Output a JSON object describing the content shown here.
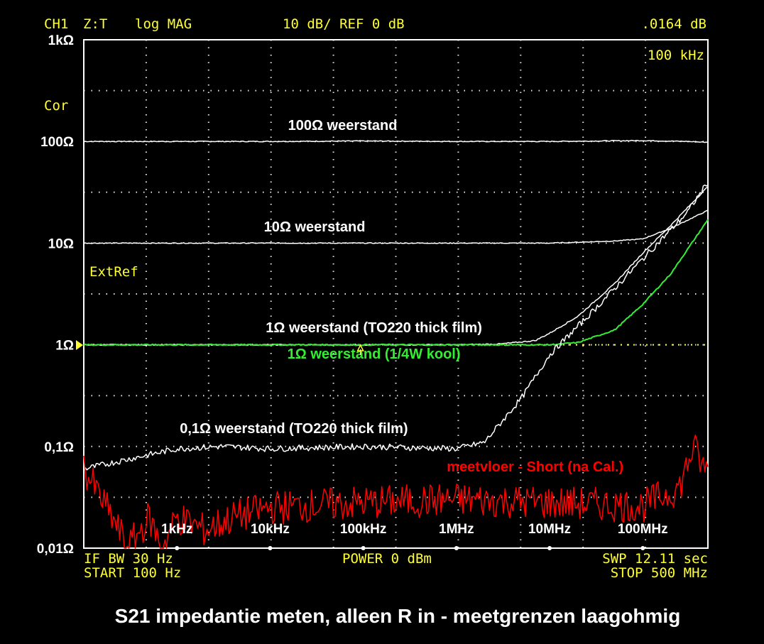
{
  "header": {
    "channel": "CH1",
    "format": "Z:T",
    "mode": "log MAG",
    "scale": "10 dB/ REF 0 dB",
    "marker_value": ".0164 dB",
    "marker_freq": "100 kHz"
  },
  "side_labels": {
    "cor": "Cor",
    "extref": "ExtRef"
  },
  "footer": {
    "if_bw": "IF BW  30 Hz",
    "start": "START  100 Hz",
    "power": "POWER   0 dBm",
    "sweep": "SWP  12.11  sec",
    "stop": "STOP  500 MHz"
  },
  "caption": "S21 impedantie meten, alleen R in - meetgrenzen laagohmig",
  "colors": {
    "background": "#000000",
    "annotation": "#ffff33",
    "trace_white": "#ffffff",
    "trace_green": "#33ee33",
    "trace_red": "#ff0000"
  },
  "chart_data": {
    "type": "line",
    "title": "",
    "xlabel": "",
    "ylabel": "",
    "x_scale": "log",
    "y_scale": "log",
    "xlim_hz": [
      100,
      500000000
    ],
    "ylim_ohm": [
      0.01,
      1000
    ],
    "y_ticks": [
      {
        "value": 1000,
        "label": "1kΩ"
      },
      {
        "value": 100,
        "label": "100Ω"
      },
      {
        "value": 10,
        "label": "10Ω"
      },
      {
        "value": 1,
        "label": "1Ω"
      },
      {
        "value": 0.1,
        "label": "0,1Ω"
      },
      {
        "value": 0.01,
        "label": "0,01Ω"
      }
    ],
    "x_ticks": [
      {
        "value": 1000,
        "label": "1kHz"
      },
      {
        "value": 10000,
        "label": "10kHz"
      },
      {
        "value": 100000,
        "label": "100kHz"
      },
      {
        "value": 1000000,
        "label": "1MHz"
      },
      {
        "value": 10000000,
        "label": "10MHz"
      },
      {
        "value": 100000000,
        "label": "100MHz"
      }
    ],
    "grid": true,
    "reference_level_ohm": 1,
    "series": [
      {
        "name": "100Ω weerstand",
        "color": "#ffffff",
        "label_x_hz": 60000,
        "label_y_ohm": 130,
        "x": [
          100,
          1000,
          10000,
          100000,
          1000000,
          10000000,
          100000000,
          300000000,
          500000000
        ],
        "y": [
          100,
          100,
          100,
          101,
          100,
          100,
          102,
          100,
          98
        ]
      },
      {
        "name": "10Ω weerstand",
        "color": "#ffffff",
        "label_x_hz": 30000,
        "label_y_ohm": 13,
        "x": [
          100,
          1000,
          10000,
          100000,
          1000000,
          10000000,
          20000000,
          50000000,
          100000000,
          200000000,
          500000000
        ],
        "y": [
          10,
          10,
          10,
          10,
          10,
          10,
          10.2,
          10.5,
          11,
          14,
          21
        ]
      },
      {
        "name": "1Ω weerstand (TO220 thick film)",
        "color": "#ffffff",
        "label_x_hz": 130000,
        "label_y_ohm": 1.33,
        "x": [
          100,
          1000,
          10000,
          100000,
          1000000,
          3000000,
          7000000,
          10000000,
          20000000,
          50000000,
          100000000,
          200000000,
          500000000
        ],
        "y": [
          1,
          1,
          1,
          1,
          1,
          1.02,
          1.1,
          1.3,
          1.9,
          4,
          8,
          15,
          36
        ]
      },
      {
        "name": "1Ω weerstand (1/4W kool)",
        "color": "#33ee33",
        "label_x_hz": 130000,
        "label_y_ohm": 0.73,
        "x": [
          100,
          1000,
          10000,
          100000,
          1000000,
          10000000,
          20000000,
          50000000,
          100000000,
          200000000,
          500000000
        ],
        "y": [
          1,
          1,
          1,
          1,
          1,
          1,
          1.05,
          1.4,
          2.5,
          5,
          17
        ]
      },
      {
        "name": "0,1Ω weerstand (TO220 thick film)",
        "color": "#ffffff",
        "label_x_hz": 18000,
        "label_y_ohm": 0.135,
        "x": [
          100,
          300,
          1000,
          3000,
          10000,
          100000,
          1000000,
          2000000,
          5000000,
          10000000,
          30000000,
          100000000,
          300000000,
          500000000
        ],
        "y": [
          0.06,
          0.075,
          0.095,
          0.1,
          0.095,
          0.1,
          0.095,
          0.11,
          0.3,
          0.8,
          2.2,
          7,
          20,
          40
        ]
      },
      {
        "name": "meetvloer - Short (na Cal.)",
        "color": "#ff0000",
        "label_x_hz": 7000000,
        "label_y_ohm": 0.057,
        "x": [
          100,
          200,
          300,
          500,
          700,
          1000,
          2000,
          4000,
          10000,
          100000,
          1000000,
          10000000,
          100000000,
          250000000,
          350000000,
          450000000,
          500000000
        ],
        "y": [
          0.06,
          0.02,
          0.01,
          0.02,
          0.01,
          0.02,
          0.015,
          0.02,
          0.025,
          0.028,
          0.03,
          0.028,
          0.026,
          0.04,
          0.1,
          0.06,
          0.06
        ]
      }
    ]
  }
}
